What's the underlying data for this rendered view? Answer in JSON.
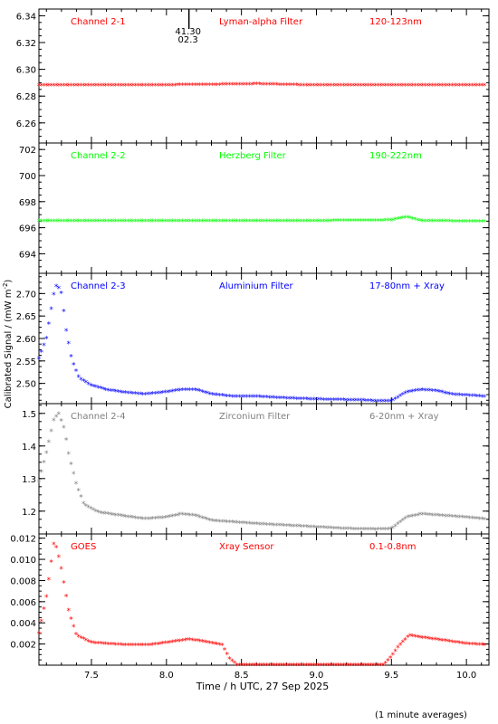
{
  "chart_data": [
    {
      "type": "scatter",
      "channel": "Channel 2-1",
      "filter": "Lyman-alpha Filter",
      "band": "120-123nm",
      "color": "#ff0000",
      "ylim": [
        6.245,
        6.345
      ],
      "yticks": [
        "6.26",
        "6.28",
        "6.30",
        "6.32",
        "6.34"
      ],
      "marker_annotation": {
        "x": 8.15,
        "lines": [
          "41.30",
          "02.3"
        ]
      },
      "series_points": [
        [
          7.15,
          6.288
        ],
        [
          8.0,
          6.288
        ],
        [
          8.45,
          6.2885
        ],
        [
          8.6,
          6.2888
        ],
        [
          8.9,
          6.288
        ],
        [
          9.6,
          6.288
        ],
        [
          10.12,
          6.288
        ]
      ]
    },
    {
      "type": "scatter",
      "channel": "Channel 2-2",
      "filter": "Herzberg Filter",
      "band": "190-222nm",
      "color": "#00ff00",
      "ylim": [
        692.5,
        702.5
      ],
      "yticks": [
        "694",
        "696",
        "698",
        "700",
        "702"
      ],
      "series_points": [
        [
          7.15,
          696.5
        ],
        [
          8.0,
          696.5
        ],
        [
          9.0,
          696.5
        ],
        [
          9.5,
          696.55
        ],
        [
          9.6,
          696.8
        ],
        [
          9.7,
          696.5
        ],
        [
          10.12,
          696.45
        ]
      ]
    },
    {
      "type": "scatter",
      "channel": "Channel 2-3",
      "filter": "Aluminium Filter",
      "band": "17-80nm + Xray",
      "color": "#0000ff",
      "ylim": [
        2.455,
        2.745
      ],
      "yticks": [
        "2.50",
        "2.55",
        "2.60",
        "2.65",
        "2.70"
      ],
      "series_points": [
        [
          7.15,
          2.555
        ],
        [
          7.2,
          2.6
        ],
        [
          7.25,
          2.7
        ],
        [
          7.27,
          2.72
        ],
        [
          7.3,
          2.7
        ],
        [
          7.33,
          2.62
        ],
        [
          7.37,
          2.55
        ],
        [
          7.42,
          2.51
        ],
        [
          7.5,
          2.495
        ],
        [
          7.6,
          2.485
        ],
        [
          7.7,
          2.48
        ],
        [
          7.85,
          2.475
        ],
        [
          8.0,
          2.48
        ],
        [
          8.1,
          2.485
        ],
        [
          8.2,
          2.485
        ],
        [
          8.3,
          2.475
        ],
        [
          8.45,
          2.47
        ],
        [
          8.6,
          2.47
        ],
        [
          8.7,
          2.468
        ],
        [
          8.9,
          2.465
        ],
        [
          9.1,
          2.463
        ],
        [
          9.3,
          2.462
        ],
        [
          9.4,
          2.46
        ],
        [
          9.5,
          2.46
        ],
        [
          9.6,
          2.48
        ],
        [
          9.7,
          2.485
        ],
        [
          9.8,
          2.483
        ],
        [
          9.9,
          2.475
        ],
        [
          10.0,
          2.473
        ],
        [
          10.12,
          2.47
        ]
      ]
    },
    {
      "type": "scatter",
      "channel": "Channel 2-4",
      "filter": "Zirconium Filter",
      "band": "6-20nm + Xray",
      "color": "#808080",
      "ylim": [
        1.13,
        1.53
      ],
      "yticks": [
        "1.2",
        "1.3",
        "1.4",
        "1.5"
      ],
      "series_points": [
        [
          7.15,
          1.29
        ],
        [
          7.2,
          1.38
        ],
        [
          7.25,
          1.48
        ],
        [
          7.28,
          1.5
        ],
        [
          7.32,
          1.45
        ],
        [
          7.35,
          1.37
        ],
        [
          7.4,
          1.28
        ],
        [
          7.45,
          1.22
        ],
        [
          7.55,
          1.195
        ],
        [
          7.7,
          1.185
        ],
        [
          7.85,
          1.175
        ],
        [
          8.0,
          1.18
        ],
        [
          8.1,
          1.19
        ],
        [
          8.2,
          1.185
        ],
        [
          8.3,
          1.17
        ],
        [
          8.45,
          1.165
        ],
        [
          8.6,
          1.16
        ],
        [
          8.8,
          1.155
        ],
        [
          9.0,
          1.15
        ],
        [
          9.2,
          1.145
        ],
        [
          9.4,
          1.143
        ],
        [
          9.5,
          1.145
        ],
        [
          9.6,
          1.18
        ],
        [
          9.7,
          1.19
        ],
        [
          9.85,
          1.185
        ],
        [
          10.0,
          1.18
        ],
        [
          10.12,
          1.175
        ]
      ]
    },
    {
      "type": "scatter",
      "channel": "GOES",
      "filter": "Xray Sensor",
      "band": "0.1-0.8nm",
      "color": "#ff0000",
      "ylim": [
        0.0,
        0.0124
      ],
      "yticks": [
        "0.002",
        "0.004",
        "0.006",
        "0.008",
        "0.010",
        "0.012"
      ],
      "series_points": [
        [
          7.15,
          0.003
        ],
        [
          7.2,
          0.0065
        ],
        [
          7.25,
          0.0115
        ],
        [
          7.27,
          0.011
        ],
        [
          7.3,
          0.009
        ],
        [
          7.35,
          0.005
        ],
        [
          7.4,
          0.0028
        ],
        [
          7.5,
          0.0021
        ],
        [
          7.7,
          0.0019
        ],
        [
          7.9,
          0.0019
        ],
        [
          8.0,
          0.0021
        ],
        [
          8.15,
          0.0024
        ],
        [
          8.25,
          0.0022
        ],
        [
          8.37,
          0.0019
        ],
        [
          8.42,
          0.0006
        ],
        [
          8.47,
          0.0
        ],
        [
          9.0,
          0.0
        ],
        [
          9.45,
          0.0
        ],
        [
          9.5,
          0.0008
        ],
        [
          9.55,
          0.0018
        ],
        [
          9.62,
          0.0028
        ],
        [
          9.7,
          0.0026
        ],
        [
          9.85,
          0.0023
        ],
        [
          10.0,
          0.002
        ],
        [
          10.12,
          0.0019
        ]
      ]
    }
  ],
  "axes": {
    "xlim": [
      7.15,
      10.15
    ],
    "xticks": [
      "7.5",
      "8.0",
      "8.5",
      "9.0",
      "9.5",
      "10.0"
    ],
    "xlabel": "Time / h UTC, 27 Sep 2025",
    "ylabel_main": "Calibrated Signal / (mW m",
    "ylabel_sup": "-2",
    "ylabel_end": ")"
  },
  "footnote": "(1 minute averages)"
}
